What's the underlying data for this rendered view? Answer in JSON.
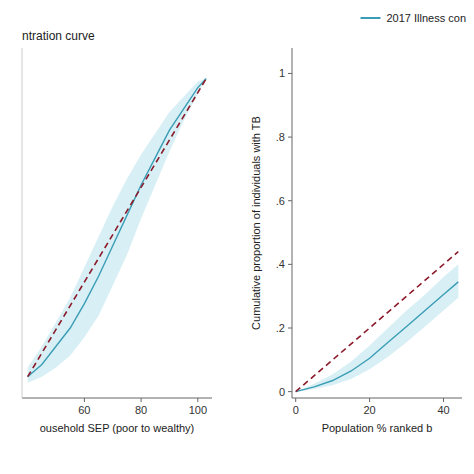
{
  "chart_data": [
    {
      "type": "line",
      "title": "ntration curve",
      "xlabel": "ousehold SEP (poor to wealthy)",
      "xlim": [
        38,
        105
      ],
      "ylim": [
        -0.05,
        1.1
      ],
      "xticks": [
        60,
        80,
        100
      ],
      "tick_labels": "x",
      "x": [
        40,
        45,
        50,
        55,
        60,
        65,
        70,
        75,
        80,
        85,
        90,
        95,
        100,
        103
      ],
      "series": [
        {
          "type": "band",
          "color": "#a8dde8",
          "upper": [
            0.05,
            0.12,
            0.2,
            0.28,
            0.38,
            0.48,
            0.58,
            0.67,
            0.75,
            0.82,
            0.89,
            0.94,
            0.99,
            1.0
          ],
          "lower": [
            0.0,
            0.02,
            0.05,
            0.09,
            0.15,
            0.22,
            0.32,
            0.42,
            0.54,
            0.65,
            0.76,
            0.86,
            0.95,
            1.0
          ]
        },
        {
          "type": "line",
          "color": "#3a9db5",
          "values": [
            0.02,
            0.06,
            0.12,
            0.18,
            0.26,
            0.35,
            0.45,
            0.55,
            0.65,
            0.74,
            0.83,
            0.9,
            0.97,
            1.0
          ]
        },
        {
          "type": "line",
          "color": "#8b1a2a",
          "line_style": "dashed",
          "x": [
            40,
            103
          ],
          "values": [
            0.02,
            1.0
          ]
        }
      ]
    },
    {
      "type": "line",
      "xlabel": "Population % ranked b",
      "ylabel": "Cumulative proportion of individuals with TB",
      "xlim": [
        -1,
        45
      ],
      "ylim": [
        -0.02,
        1.08
      ],
      "xticks": [
        0,
        20,
        40
      ],
      "yticks": [
        0,
        {
          "value": 0.2,
          "label": ".2"
        },
        {
          "value": 0.4,
          "label": ".4"
        },
        {
          "value": 0.6,
          "label": ".6"
        },
        {
          "value": 0.8,
          "label": ".8"
        },
        1
      ],
      "legend": "upper right",
      "x": [
        0,
        5,
        10,
        15,
        20,
        25,
        30,
        35,
        40,
        44
      ],
      "series": [
        {
          "type": "band",
          "color": "#a8dde8",
          "upper": [
            0.0,
            0.025,
            0.055,
            0.095,
            0.145,
            0.2,
            0.255,
            0.305,
            0.36,
            0.4
          ],
          "lower": [
            0.0,
            0.008,
            0.02,
            0.04,
            0.07,
            0.11,
            0.155,
            0.205,
            0.255,
            0.295
          ]
        },
        {
          "type": "line",
          "name": "2017 Illness con",
          "color": "#3a9db5",
          "values": [
            0.0,
            0.015,
            0.035,
            0.065,
            0.105,
            0.155,
            0.205,
            0.255,
            0.305,
            0.345
          ]
        },
        {
          "type": "line",
          "color": "#8b1a2a",
          "line_style": "dashed",
          "x": [
            0,
            44
          ],
          "values": [
            0.0,
            0.44
          ]
        }
      ]
    }
  ]
}
